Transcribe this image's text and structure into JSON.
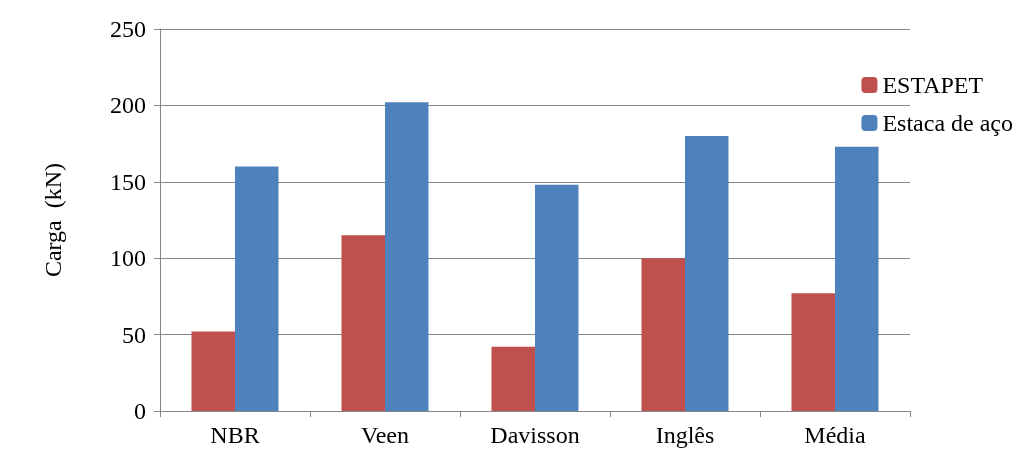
{
  "chart_data": {
    "type": "bar",
    "ylabel": "Carga  (kN)",
    "categories": [
      "NBR",
      "Veen",
      "Davisson",
      "Inglês",
      "Média"
    ],
    "series": [
      {
        "name": "ESTAPET",
        "color": "#c0504d",
        "values": [
          52,
          115,
          42,
          100,
          77
        ]
      },
      {
        "name": "Estaca de aço",
        "color": "#4f81bd",
        "values": [
          160,
          202,
          148,
          180,
          173
        ]
      }
    ],
    "ylim": [
      0,
      250
    ],
    "yticks": [
      0,
      50,
      100,
      150,
      200,
      250
    ],
    "grid": "y",
    "legend": "top right"
  }
}
